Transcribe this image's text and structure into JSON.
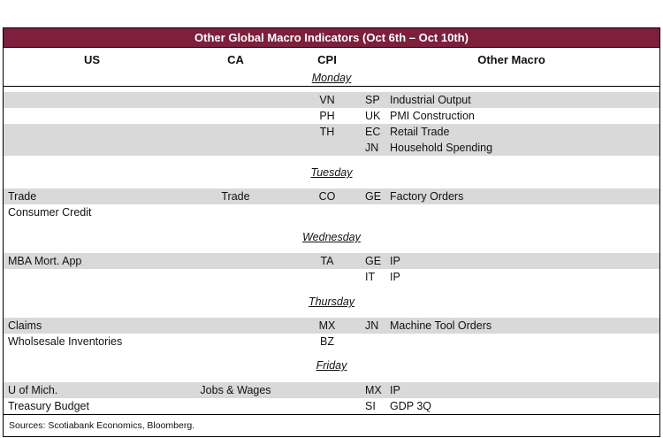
{
  "title": "Other Global Macro Indicators (Oct 6th – Oct 10th)",
  "colors": {
    "header_bg": "#7d1f3d",
    "row_shaded": "#d9d9d9"
  },
  "columns": {
    "us": "US",
    "ca": "CA",
    "cpi": "CPI",
    "other": "Other Macro"
  },
  "days": {
    "monday": "Monday",
    "tuesday": "Tuesday",
    "wednesday": "Wednesday",
    "thursday": "Thursday",
    "friday": "Friday"
  },
  "rows": [
    {
      "us": "",
      "ca": "",
      "cpi": "VN",
      "oc": "SP",
      "on": "Industrial Output"
    },
    {
      "us": "",
      "ca": "",
      "cpi": "PH",
      "oc": "UK",
      "on": "PMI Construction"
    },
    {
      "us": "",
      "ca": "",
      "cpi": "TH",
      "oc": "EC",
      "on": "Retail Trade"
    },
    {
      "us": "",
      "ca": "",
      "cpi": "",
      "oc": "JN",
      "on": "Household Spending"
    },
    {
      "us": "Trade",
      "ca": "Trade",
      "cpi": "CO",
      "oc": "GE",
      "on": "Factory Orders"
    },
    {
      "us": "Consumer Credit",
      "ca": "",
      "cpi": "",
      "oc": "",
      "on": ""
    },
    {
      "us": "MBA Mort. App",
      "ca": "",
      "cpi": "TA",
      "oc": "GE",
      "on": "IP"
    },
    {
      "us": "",
      "ca": "",
      "cpi": "",
      "oc": "IT",
      "on": "IP"
    },
    {
      "us": "Claims",
      "ca": "",
      "cpi": "MX",
      "oc": "JN",
      "on": "Machine Tool Orders"
    },
    {
      "us": "Wholsesale Inventories",
      "ca": "",
      "cpi": "BZ",
      "oc": "",
      "on": ""
    },
    {
      "us": "U of Mich.",
      "ca": "Jobs & Wages",
      "cpi": "",
      "oc": "MX",
      "on": "IP"
    },
    {
      "us": "Treasury Budget",
      "ca": "",
      "cpi": "",
      "oc": "SI",
      "on": "GDP 3Q"
    }
  ],
  "footer": {
    "sources": "Sources: Scotiabank Economics, Bloomberg."
  }
}
